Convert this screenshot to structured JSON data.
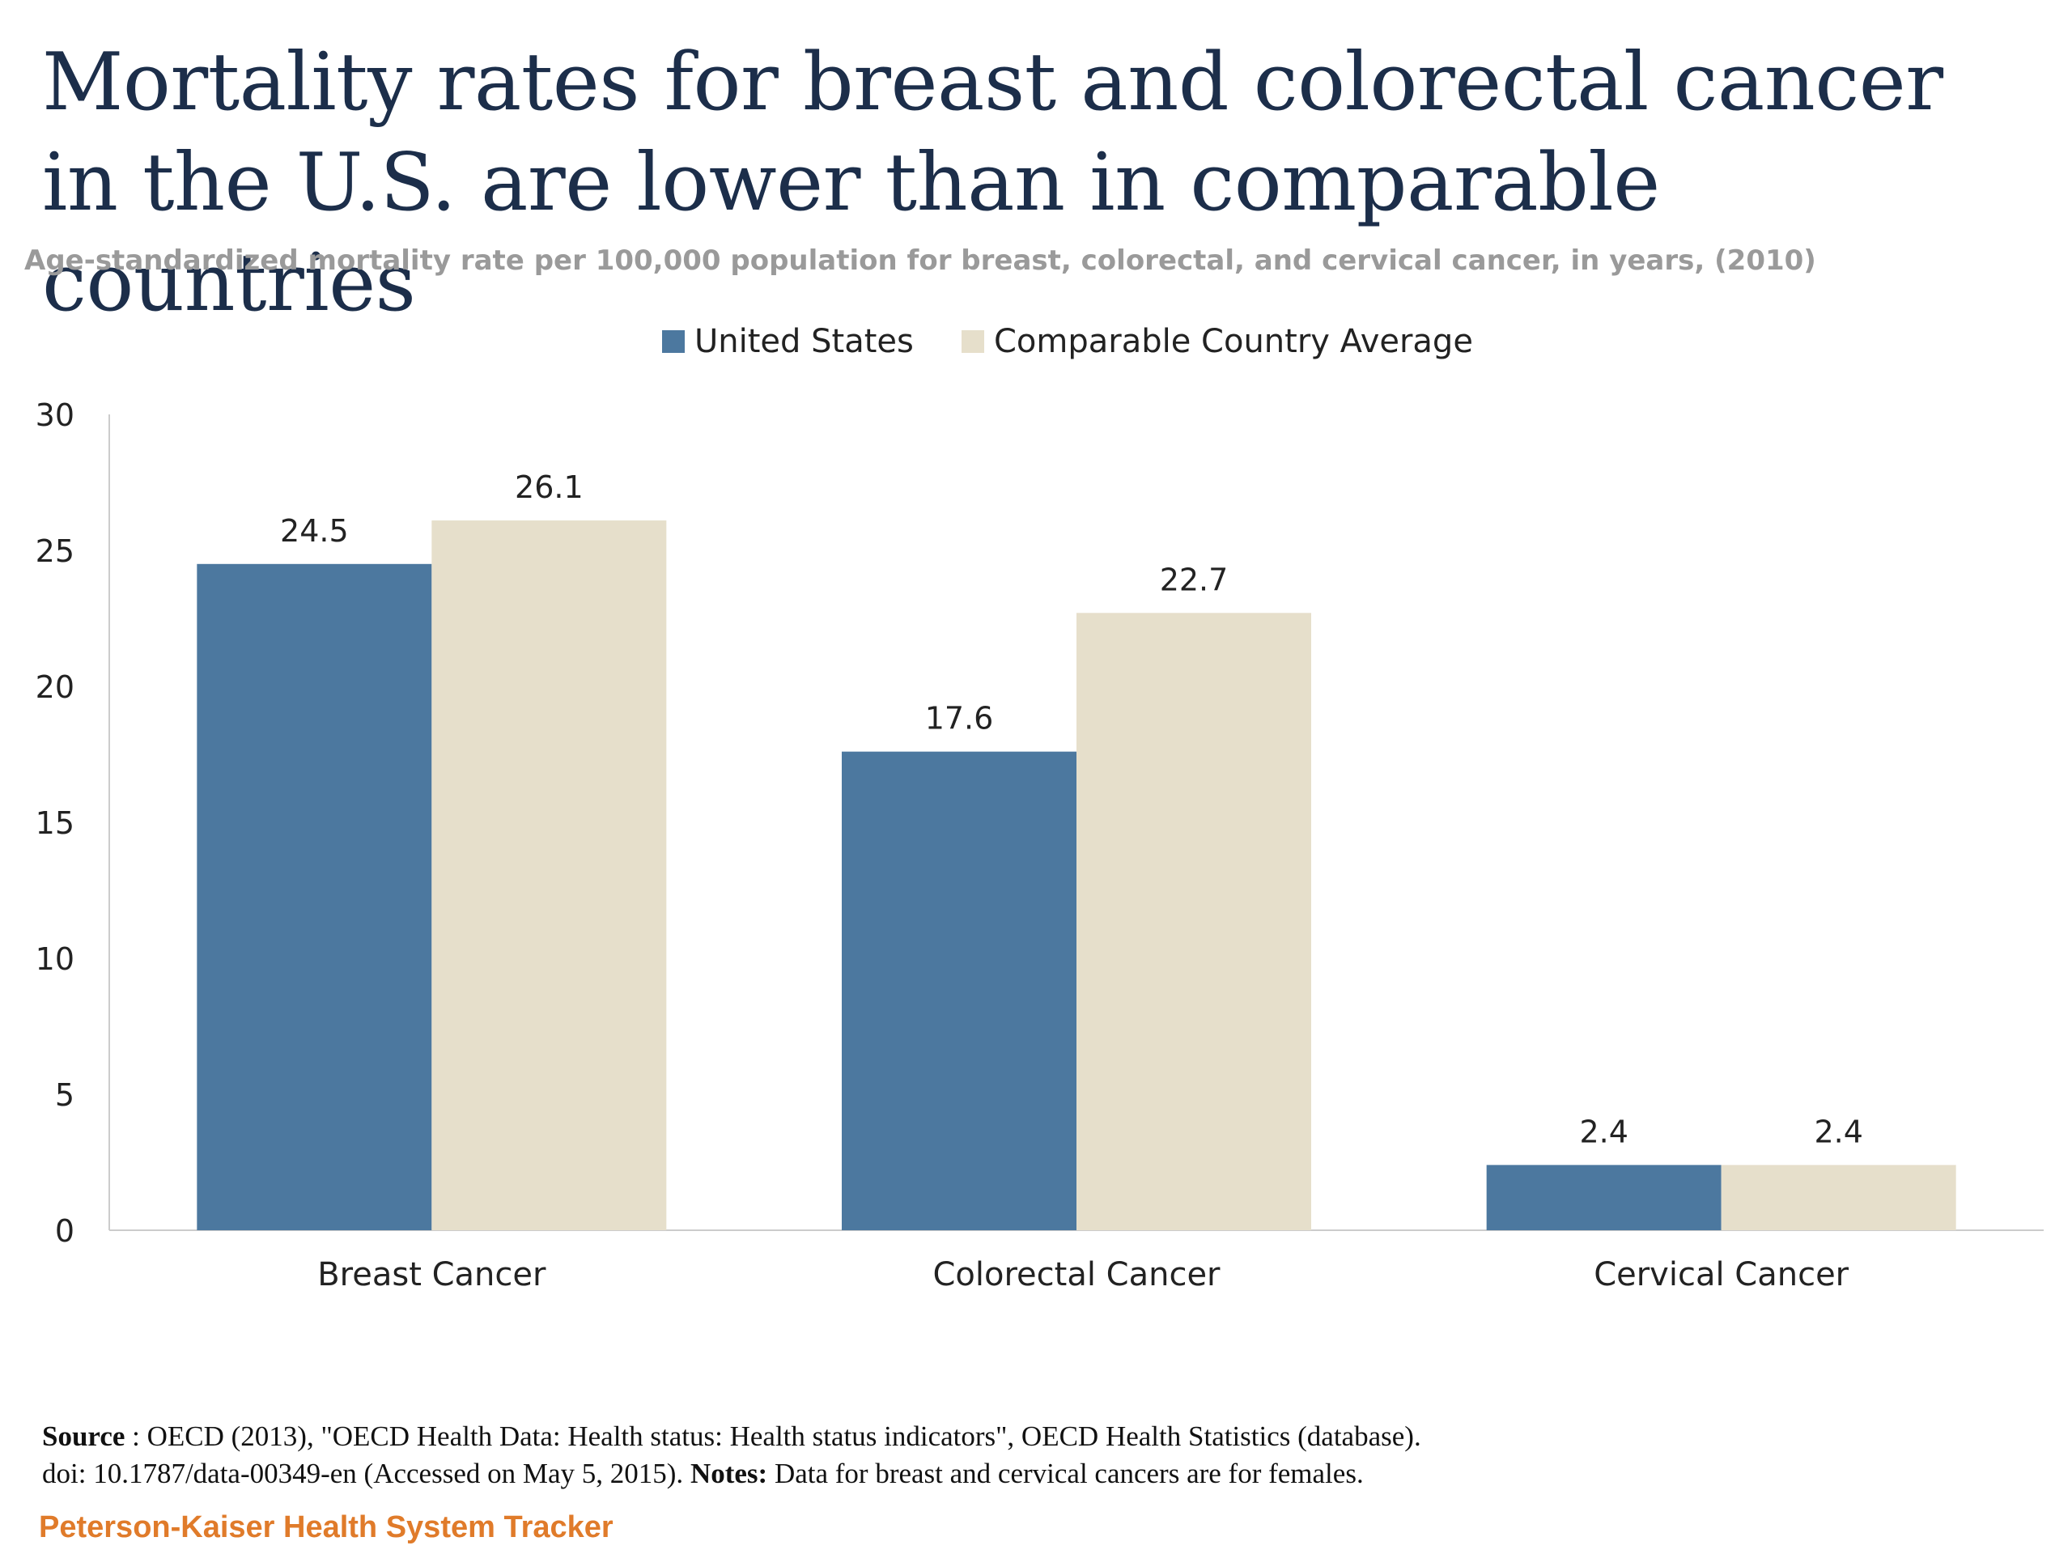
{
  "chart_data": {
    "type": "bar",
    "title": "Mortality rates for breast and colorectal cancer in the U.S. are lower than in comparable countries",
    "subtitle": "Age-standardized mortality rate per 100,000 population for breast, colorectal, and cervical cancer, in years, (2010)",
    "categories": [
      "Breast Cancer",
      "Colorectal Cancer",
      "Cervical Cancer"
    ],
    "series": [
      {
        "name": "United States",
        "values": [
          24.5,
          17.6,
          2.4
        ],
        "labels": [
          "24.5",
          "17.6",
          "2.4"
        ],
        "color": "#4c789f"
      },
      {
        "name": "Comparable Country Average",
        "values": [
          26.1,
          22.7,
          2.4
        ],
        "labels": [
          "26.1",
          "22.7",
          "2.4"
        ],
        "color": "#e6dfcb"
      }
    ],
    "ylim": [
      0,
      30
    ],
    "yticks": [
      0,
      5,
      10,
      15,
      20,
      25,
      30
    ],
    "ytick_labels": [
      "0",
      "5",
      "10",
      "15",
      "20",
      "25",
      "30"
    ],
    "grid": false,
    "legend_position": "top-center"
  },
  "footer": {
    "source_label": "Source",
    "source_text": " : OECD (2013), \"OECD Health Data: Health status: Health status indicators\", OECD Health Statistics (database).",
    "doi_text": "doi: 10.1787/data-00349-en (Accessed on May 5, 2015).  ",
    "notes_label": "Notes:",
    "notes_text": " Data for breast and cervical cancers are for females.",
    "brand": "Peterson-Kaiser Health System Tracker"
  },
  "colors": {
    "title": "#1c2e4a",
    "brand": "#e07b2a",
    "axis": "#cccccc"
  }
}
